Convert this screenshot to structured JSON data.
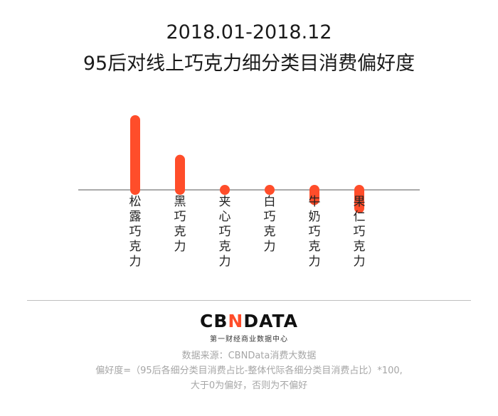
{
  "title_line1": "2018.01-2018.12",
  "title_line2": "95后对线上巧克力细分类目消费偏好度",
  "chart_data": {
    "type": "bar",
    "categories": [
      "松露巧克力",
      "黑巧克力",
      "夹心巧克力",
      "白巧克力",
      "牛奶巧克力",
      "果仁巧克力"
    ],
    "values": [
      100,
      47,
      -7,
      -8,
      -27,
      -38
    ],
    "baseline": 0,
    "bar_color": "#ff4d2a",
    "axis_color": "#555555"
  },
  "logo": {
    "part1": "CB",
    "mark": "N",
    "part2": "DATA",
    "subtitle": "第一财经商业数据中心"
  },
  "notes": {
    "source": "数据来源：CBNData消费大数据",
    "formula": "偏好度=（95后各细分类目消费占比-整体代际各细分类目消费占比）*100,",
    "explanation": "大于0为偏好，否则为不偏好"
  }
}
